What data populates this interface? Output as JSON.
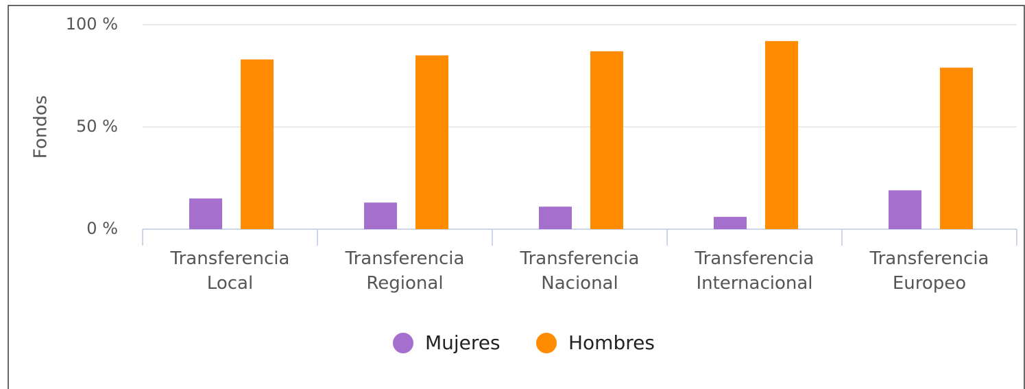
{
  "chart_data": {
    "type": "bar",
    "y_label": "Fondos",
    "categories": [
      "Transferencia Local",
      "Transferencia Regional",
      "Transferencia Nacional",
      "Transferencia Internacional",
      "Transferencia Europeo"
    ],
    "series": [
      {
        "name": "Mujeres",
        "color": "#a56fce",
        "values": [
          15,
          13,
          11,
          6,
          19
        ]
      },
      {
        "name": "Hombres",
        "color": "#ff8c00",
        "values": [
          83,
          85,
          87,
          92,
          79
        ]
      }
    ],
    "ylim": [
      0,
      100
    ],
    "yticks": [
      {
        "value": 0,
        "label": "0 %"
      },
      {
        "value": 50,
        "label": "50 %"
      },
      {
        "value": 100,
        "label": "100 %"
      }
    ],
    "grid": true,
    "legend": "bottom"
  }
}
